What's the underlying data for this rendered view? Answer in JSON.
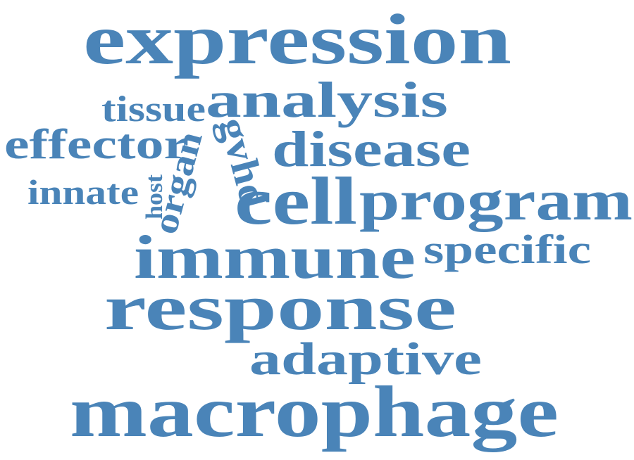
{
  "word_cloud": {
    "color": "#4a84b8",
    "words": [
      {
        "id": "expression",
        "text": "expression"
      },
      {
        "id": "analysis",
        "text": "analysis"
      },
      {
        "id": "tissue",
        "text": "tissue"
      },
      {
        "id": "effector",
        "text": "effector"
      },
      {
        "id": "disease",
        "text": "disease"
      },
      {
        "id": "innate",
        "text": "innate"
      },
      {
        "id": "cell",
        "text": "cell"
      },
      {
        "id": "program",
        "text": "program"
      },
      {
        "id": "host",
        "text": "host"
      },
      {
        "id": "organ",
        "text": "organ"
      },
      {
        "id": "gvhd",
        "text": "gvhd"
      },
      {
        "id": "immune",
        "text": "immune"
      },
      {
        "id": "specific",
        "text": "specific"
      },
      {
        "id": "response",
        "text": "response"
      },
      {
        "id": "adaptive",
        "text": "adaptive"
      },
      {
        "id": "macrophage",
        "text": "macrophage"
      }
    ]
  }
}
